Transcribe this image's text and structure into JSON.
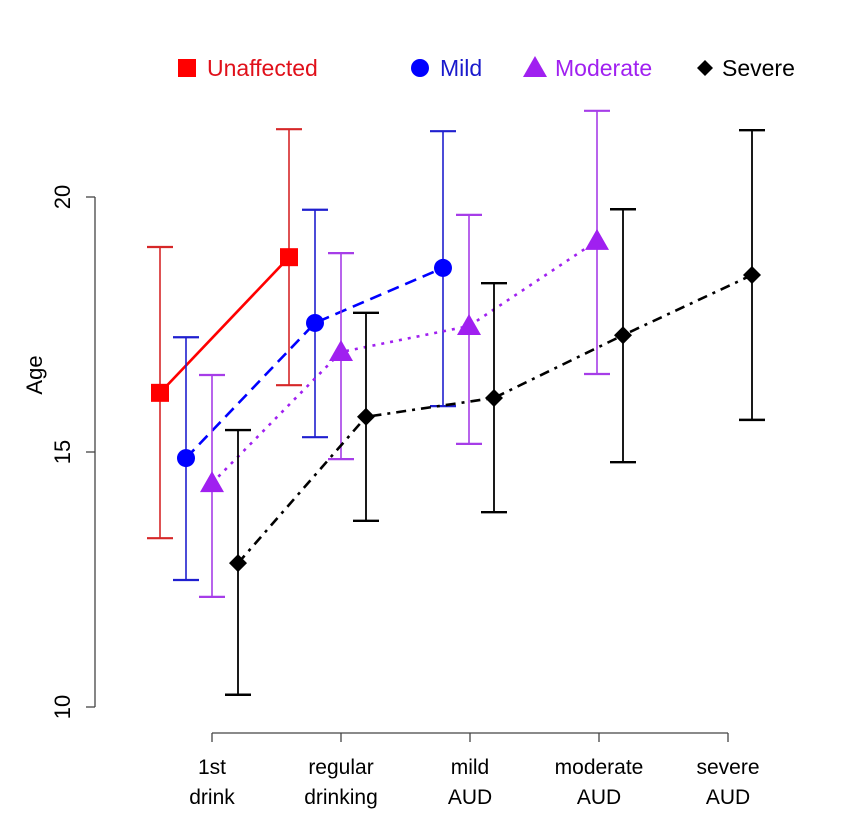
{
  "chart_data": {
    "type": "scatter",
    "title": "",
    "xlabel": "",
    "ylabel": "Age",
    "ylim": [
      10,
      20
    ],
    "yticks": [
      "10",
      "15",
      "20"
    ],
    "categories": [
      {
        "line1": "1st",
        "line2": "drink"
      },
      {
        "line1": "regular",
        "line2": "drinking"
      },
      {
        "line1": "mild",
        "line2": "AUD"
      },
      {
        "line1": "moderate",
        "line2": "AUD"
      },
      {
        "line1": "severe",
        "line2": "AUD"
      }
    ],
    "legend_position": "top",
    "grid": false,
    "series": [
      {
        "name": "Unaffected",
        "color": "#ff0000",
        "errcolor": "#d62728",
        "marker": "square",
        "line_style": "solid",
        "points": [
          {
            "cat": 0,
            "y": 16.16,
            "lo": 13.31,
            "hi": 19.02
          },
          {
            "cat": 1,
            "y": 18.82,
            "lo": 16.31,
            "hi": 21.33
          }
        ]
      },
      {
        "name": "Mild",
        "color": "#0000ff",
        "errcolor": "#1f1fcf",
        "marker": "circle",
        "line_style": "dashed",
        "points": [
          {
            "cat": 0,
            "y": 14.88,
            "lo": 12.49,
            "hi": 17.25
          },
          {
            "cat": 1,
            "y": 17.53,
            "lo": 15.29,
            "hi": 19.75
          },
          {
            "cat": 2,
            "y": 18.61,
            "lo": 15.9,
            "hi": 21.29
          }
        ]
      },
      {
        "name": "Moderate",
        "color": "#a020f0",
        "errcolor": "#a63de8",
        "marker": "triangle",
        "line_style": "dotted",
        "points": [
          {
            "cat": 0,
            "y": 14.39,
            "lo": 12.16,
            "hi": 16.51
          },
          {
            "cat": 1,
            "y": 16.96,
            "lo": 14.86,
            "hi": 18.9
          },
          {
            "cat": 2,
            "y": 17.47,
            "lo": 15.16,
            "hi": 19.65
          },
          {
            "cat": 3,
            "y": 19.14,
            "lo": 16.53,
            "hi": 21.69
          }
        ]
      },
      {
        "name": "Severe",
        "color": "#000000",
        "errcolor": "#000000",
        "marker": "diamond",
        "line_style": "dotdash",
        "points": [
          {
            "cat": 0,
            "y": 12.82,
            "lo": 10.24,
            "hi": 15.43
          },
          {
            "cat": 1,
            "y": 15.69,
            "lo": 13.65,
            "hi": 17.73
          },
          {
            "cat": 2,
            "y": 16.06,
            "lo": 13.82,
            "hi": 18.31
          },
          {
            "cat": 3,
            "y": 17.29,
            "lo": 14.8,
            "hi": 19.76
          },
          {
            "cat": 4,
            "y": 18.47,
            "lo": 15.63,
            "hi": 21.31
          }
        ]
      }
    ]
  }
}
